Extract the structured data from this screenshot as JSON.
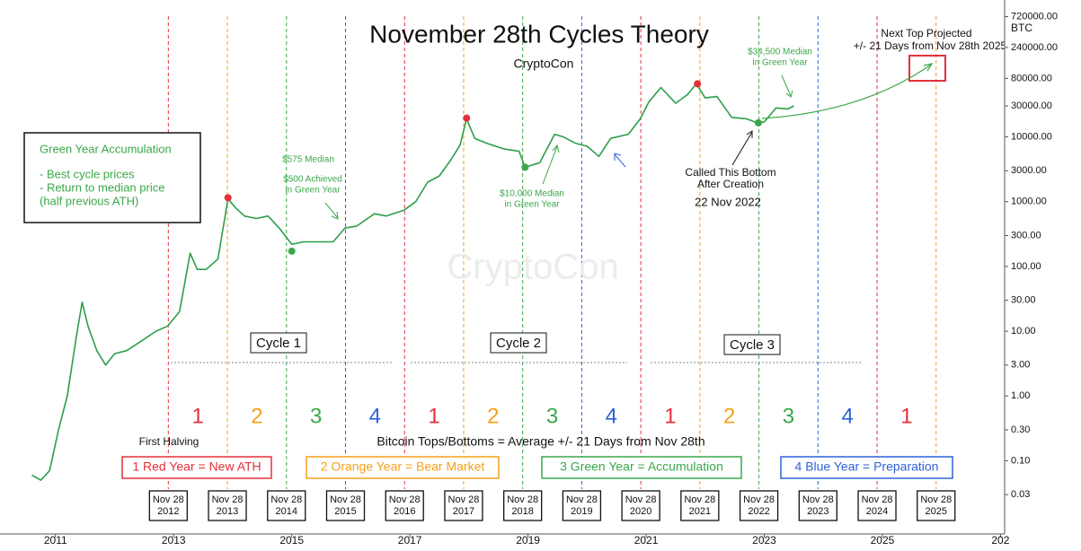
{
  "chart_data": {
    "type": "line",
    "title": "November 28th Cycles Theory",
    "subtitle": "CryptoCon",
    "watermark": "CryptoCon",
    "y_axis_label": "BTC",
    "log_scale": true,
    "color": "#2e9e4a",
    "x": [
      2010.6,
      2010.75,
      2010.9,
      2011.05,
      2011.2,
      2011.35,
      2011.45,
      2011.55,
      2011.7,
      2011.85,
      2012.0,
      2012.2,
      2012.45,
      2012.7,
      2012.9,
      2013.1,
      2013.28,
      2013.4,
      2013.55,
      2013.75,
      2013.92,
      2014.05,
      2014.2,
      2014.4,
      2014.6,
      2014.8,
      2015.0,
      2015.2,
      2015.45,
      2015.7,
      2015.9,
      2016.1,
      2016.4,
      2016.6,
      2016.9,
      2017.1,
      2017.3,
      2017.5,
      2017.7,
      2017.85,
      2017.96,
      2018.1,
      2018.3,
      2018.6,
      2018.85,
      2018.95,
      2019.2,
      2019.45,
      2019.6,
      2019.8,
      2020.0,
      2020.2,
      2020.4,
      2020.7,
      2020.9,
      2021.05,
      2021.25,
      2021.5,
      2021.7,
      2021.85,
      2022.0,
      2022.2,
      2022.45,
      2022.7,
      2022.88,
      2023.0,
      2023.2,
      2023.4,
      2023.5
    ],
    "values": [
      0.06,
      0.05,
      0.07,
      0.3,
      1,
      8,
      28,
      12,
      5,
      3,
      4.5,
      5,
      7,
      10,
      12,
      20,
      160,
      90,
      90,
      130,
      1100,
      800,
      600,
      550,
      600,
      380,
      220,
      240,
      240,
      240,
      390,
      420,
      650,
      600,
      740,
      1000,
      2000,
      2500,
      4500,
      7500,
      19000,
      9500,
      8000,
      6500,
      6000,
      3400,
      4000,
      11000,
      10000,
      8000,
      7200,
      5000,
      9500,
      11000,
      19000,
      35000,
      58000,
      33000,
      45000,
      66000,
      40000,
      42000,
      20000,
      19000,
      16500,
      17000,
      28000,
      27000,
      30000
    ],
    "tops": {
      "color": "#e5303a",
      "x": [
        2013.92,
        2017.96,
        2021.87
      ],
      "values": [
        1150,
        19500,
        66000
      ]
    },
    "bottoms": {
      "color": "#3aa84a",
      "x": [
        2015.0,
        2018.95,
        2022.9
      ],
      "values": [
        172,
        3400,
        16500
      ]
    },
    "xlim": [
      2010.06,
      2027.07
    ],
    "ylim": [
      0.0074,
      1300000
    ],
    "xticks": [
      2011,
      2013,
      2015,
      2017,
      2019,
      2021,
      2023,
      2025,
      {
        "value": 2027,
        "label": "202"
      }
    ],
    "yticks": [
      {
        "value": 0.03,
        "label": "0.03"
      },
      {
        "value": 0.1,
        "label": "0.10"
      },
      {
        "value": 0.3,
        "label": "0.30"
      },
      {
        "value": 1,
        "label": "1.00"
      },
      {
        "value": 3,
        "label": "3.00"
      },
      {
        "value": 10,
        "label": "10.00"
      },
      {
        "value": 30,
        "label": "30.00"
      },
      {
        "value": 100,
        "label": "100.00"
      },
      {
        "value": 300,
        "label": "300.00"
      },
      {
        "value": 1000,
        "label": "1000.00"
      },
      {
        "value": 3000,
        "label": "3000.00"
      },
      {
        "value": 10000,
        "label": "10000.00"
      },
      {
        "value": 30000,
        "label": "30000.00"
      },
      {
        "value": 80000,
        "label": "80000.00"
      },
      {
        "value": 240000,
        "label": "240000.00"
      },
      {
        "value": 720000,
        "label": "720000.00"
      }
    ],
    "nov28": {
      "x": [
        2012.91,
        2013.91,
        2014.91,
        2015.91,
        2016.91,
        2017.91,
        2018.91,
        2019.91,
        2020.91,
        2021.91,
        2022.91,
        2023.91,
        2024.91,
        2025.91
      ],
      "colors": [
        "#e5303a",
        "#f5a01a",
        "#3aa84a",
        "#2f62d8",
        "#e5303a",
        "#f5a01a",
        "#3aa84a",
        "#2f62d8",
        "#e5303a",
        "#f5a01a",
        "#3aa84a",
        "#2f62d8",
        "#e5303a",
        "#f5a01a"
      ],
      "labels": [
        [
          "Nov 28",
          "2012"
        ],
        [
          "Nov 28",
          "2013"
        ],
        [
          "Nov 28",
          "2014"
        ],
        [
          "Nov 28",
          "2015"
        ],
        [
          "Nov 28",
          "2016"
        ],
        [
          "Nov 28",
          "2017"
        ],
        [
          "Nov 28",
          "2018"
        ],
        [
          "Nov 28",
          "2019"
        ],
        [
          "Nov 28",
          "2020"
        ],
        [
          "Nov 28",
          "2021"
        ],
        [
          "Nov 28",
          "2022"
        ],
        [
          "Nov 28",
          "2023"
        ],
        [
          "Nov 28",
          "2024"
        ],
        [
          "Nov 28",
          "2025"
        ]
      ]
    },
    "year_numbers": [
      "1",
      "2",
      "3",
      "4",
      "1",
      "2",
      "3",
      "4",
      "1",
      "2",
      "3",
      "4",
      "1"
    ],
    "cycles": [
      "Cycle 1",
      "Cycle 2",
      "Cycle 3"
    ],
    "legend_boxes": [
      {
        "text": "1 Red Year = New ATH",
        "color": "#e5303a"
      },
      {
        "text": "2 Orange Year = Bear Market",
        "color": "#f5a01a"
      },
      {
        "text": "3 Green Year = Accumulation",
        "color": "#3aa84a"
      },
      {
        "text": "4 Blue Year = Preparation",
        "color": "#2f62d8"
      }
    ],
    "annotations": {
      "next_top": [
        "Next Top Projected",
        "+/- 21 Days from Nov 28th 2025"
      ],
      "median_34500": [
        "$34,500 Median",
        "in Green Year"
      ],
      "median_575": "$575 Median",
      "achieved_500": [
        "$500 Achieved",
        "in Green Year"
      ],
      "median_10000": [
        "$10,000 Median",
        "in Green Year"
      ],
      "called_bottom": [
        "Called This Bottom",
        "After Creation"
      ],
      "bottom_date": "22 Nov 2022",
      "green_box": [
        "Green Year Accumulation",
        "- Best cycle prices",
        "- Return to median price",
        "(half previous ATH)"
      ],
      "first_halving": "First Halving",
      "tops_bottoms": "Bitcoin Tops/Bottoms = Average +/- 21 Days from Nov 28th"
    }
  }
}
